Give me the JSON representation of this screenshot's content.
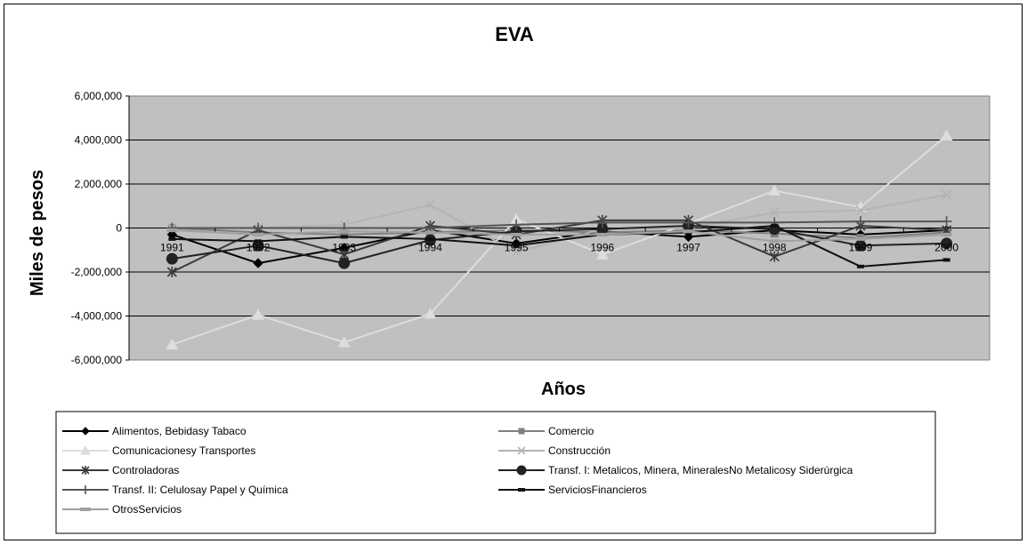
{
  "chart_data": {
    "type": "line",
    "title": "EVA",
    "xlabel": "Años",
    "ylabel": "Miles de pesos",
    "x": [
      "1991",
      "1992",
      "1993",
      "1994",
      "1995",
      "1996",
      "1997",
      "1998",
      "1999",
      "2000"
    ],
    "ylim": [
      -6000000,
      6000000
    ],
    "yticks": [
      "6,000,000",
      "4,000,000",
      "2,000,000",
      "0",
      "-2,000,000",
      "-4,000,000",
      "-6,000,000"
    ],
    "yticks_values": [
      6000000,
      4000000,
      2000000,
      0,
      -2000000,
      -4000000,
      -6000000
    ],
    "grid": true,
    "legend_position": "bottom",
    "series": [
      {
        "name": "Alimentos, Bebidasy Tabaco",
        "color": "#000000",
        "marker": "diamond",
        "dash": false,
        "values": [
          -300000,
          -1600000,
          -900000,
          -100000,
          -700000,
          -150000,
          -400000,
          -100000,
          -300000,
          -100000
        ]
      },
      {
        "name": "Comercio",
        "color": "#808080",
        "marker": "square",
        "dash": false,
        "values": [
          0,
          -200000,
          -300000,
          -200000,
          -100000,
          -200000,
          -100000,
          -250000,
          -450000,
          -200000
        ]
      },
      {
        "name": "Comunicacionesy Transportes",
        "color": "#dddddd",
        "marker": "triangle",
        "dash": false,
        "values": [
          -5300000,
          -3950000,
          -5200000,
          -3900000,
          400000,
          -1200000,
          200000,
          1700000,
          950000,
          4200000
        ]
      },
      {
        "name": "Construcción",
        "color": "#b3b3b3",
        "marker": "x",
        "dash": false,
        "values": [
          0,
          0,
          150000,
          1050000,
          -1100000,
          -50000,
          0,
          700000,
          800000,
          1500000
        ]
      },
      {
        "name": "Controladoras",
        "color": "#3a3a3a",
        "marker": "star",
        "dash": false,
        "values": [
          -2000000,
          -100000,
          -1200000,
          100000,
          -300000,
          350000,
          350000,
          -1300000,
          100000,
          -100000
        ]
      },
      {
        "name": "Transf. I: Metalicos, Minera, MineralesNo Metalicosy Siderúrgica",
        "color": "#222222",
        "marker": "circle",
        "dash": false,
        "values": [
          -1400000,
          -800000,
          -1600000,
          -550000,
          -150000,
          -50000,
          100000,
          -50000,
          -800000,
          -700000
        ]
      },
      {
        "name": "Transf. II: Celulosay Papel y Química",
        "color": "#555555",
        "marker": "plus",
        "dash": false,
        "values": [
          0,
          0,
          0,
          0,
          150000,
          250000,
          250000,
          250000,
          300000,
          300000
        ]
      },
      {
        "name": "ServiciosFinancieros",
        "color": "#111111",
        "marker": "dash",
        "dash": false,
        "values": [
          -500000,
          -600000,
          -400000,
          -500000,
          -800000,
          -300000,
          -200000,
          100000,
          -1750000,
          -1450000
        ]
      },
      {
        "name": "OtrosServicios",
        "color": "#a0a0a0",
        "marker": "bar",
        "dash": false,
        "values": [
          -100000,
          -300000,
          -150000,
          -200000,
          -300000,
          -300000,
          -150000,
          -600000,
          -500000,
          -300000
        ]
      }
    ]
  }
}
